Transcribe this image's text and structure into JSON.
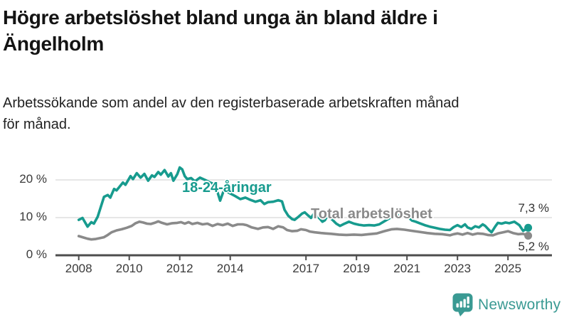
{
  "header": {
    "title_line1": "Högre arbetslöshet bland unga än bland äldre i",
    "title_line2": "Ängelholm",
    "subtitle_line1": "Arbetssökande som andel av den registerbaserade arbetskraften månad",
    "subtitle_line2": "för månad."
  },
  "footer": {
    "brand": "Newsworthy",
    "logo_icon": "bar-chart-speech-bubble-icon",
    "brand_color": "#3a9a93"
  },
  "chart_data": {
    "type": "line",
    "title": "Högre arbetslöshet bland unga än bland äldre i Ängelholm",
    "subtitle": "Arbetssökande som andel av den registerbaserade arbetskraften månad för månad.",
    "unit": "percent of registered labour force",
    "grid": "horizontal-only",
    "legend_position": "inline-labels",
    "x_axis": {
      "range": [
        2007.9,
        2026.8
      ],
      "ticks": [
        {
          "value": 2008,
          "label": "2008"
        },
        {
          "value": 2010,
          "label": "2010"
        },
        {
          "value": 2012,
          "label": "2012"
        },
        {
          "value": 2014,
          "label": "2014"
        },
        {
          "value": 2017,
          "label": "2017"
        },
        {
          "value": 2019,
          "label": "2019"
        },
        {
          "value": 2021,
          "label": "2021"
        },
        {
          "value": 2023,
          "label": "2023"
        },
        {
          "value": 2025,
          "label": "2025"
        }
      ]
    },
    "y_axis": {
      "range": [
        0,
        23.5
      ],
      "ticks": [
        {
          "value": 0,
          "label": "0 %"
        },
        {
          "value": 10,
          "label": "10 %"
        },
        {
          "value": 20,
          "label": "20 %"
        }
      ]
    },
    "colors": {
      "grid": "#dedede",
      "axis": "#4d4d4d",
      "tick_text": "#3a3a3a",
      "end_label_text": "#333333"
    },
    "series": [
      {
        "name": "Total arbetslöshet",
        "color": "#8a8a8a",
        "end_label": "5,2 %",
        "end_value": 5.2,
        "points": [
          [
            2008.0,
            5.1
          ],
          [
            2008.2,
            4.7
          ],
          [
            2008.35,
            4.4
          ],
          [
            2008.5,
            4.2
          ],
          [
            2008.65,
            4.3
          ],
          [
            2008.8,
            4.5
          ],
          [
            2009.0,
            4.8
          ],
          [
            2009.15,
            5.4
          ],
          [
            2009.3,
            6.1
          ],
          [
            2009.5,
            6.6
          ],
          [
            2009.7,
            6.9
          ],
          [
            2009.9,
            7.3
          ],
          [
            2010.1,
            7.8
          ],
          [
            2010.25,
            8.5
          ],
          [
            2010.4,
            8.9
          ],
          [
            2010.55,
            8.7
          ],
          [
            2010.7,
            8.4
          ],
          [
            2010.85,
            8.3
          ],
          [
            2011.0,
            8.6
          ],
          [
            2011.15,
            9.0
          ],
          [
            2011.3,
            8.6
          ],
          [
            2011.5,
            8.2
          ],
          [
            2011.7,
            8.5
          ],
          [
            2011.9,
            8.6
          ],
          [
            2012.05,
            8.8
          ],
          [
            2012.2,
            8.4
          ],
          [
            2012.35,
            8.8
          ],
          [
            2012.5,
            8.3
          ],
          [
            2012.7,
            8.6
          ],
          [
            2012.9,
            8.2
          ],
          [
            2013.1,
            8.4
          ],
          [
            2013.3,
            7.8
          ],
          [
            2013.5,
            8.3
          ],
          [
            2013.7,
            8.0
          ],
          [
            2013.9,
            8.4
          ],
          [
            2014.1,
            7.8
          ],
          [
            2014.3,
            8.2
          ],
          [
            2014.5,
            8.2
          ],
          [
            2014.65,
            8.0
          ],
          [
            2014.85,
            7.4
          ],
          [
            2015.1,
            7.0
          ],
          [
            2015.3,
            7.4
          ],
          [
            2015.5,
            7.5
          ],
          [
            2015.7,
            7.0
          ],
          [
            2015.9,
            7.7
          ],
          [
            2016.1,
            7.4
          ],
          [
            2016.25,
            6.7
          ],
          [
            2016.45,
            6.4
          ],
          [
            2016.65,
            6.5
          ],
          [
            2016.8,
            6.9
          ],
          [
            2017.0,
            6.7
          ],
          [
            2017.15,
            6.3
          ],
          [
            2017.35,
            6.1
          ],
          [
            2017.6,
            5.9
          ],
          [
            2017.8,
            5.8
          ],
          [
            2018.0,
            5.7
          ],
          [
            2018.3,
            5.5
          ],
          [
            2018.6,
            5.4
          ],
          [
            2018.9,
            5.5
          ],
          [
            2019.2,
            5.4
          ],
          [
            2019.5,
            5.6
          ],
          [
            2019.8,
            5.8
          ],
          [
            2020.1,
            6.4
          ],
          [
            2020.4,
            6.9
          ],
          [
            2020.6,
            7.0
          ],
          [
            2020.9,
            6.8
          ],
          [
            2021.2,
            6.5
          ],
          [
            2021.5,
            6.2
          ],
          [
            2021.8,
            5.9
          ],
          [
            2022.1,
            5.7
          ],
          [
            2022.4,
            5.6
          ],
          [
            2022.7,
            5.3
          ],
          [
            2022.85,
            5.6
          ],
          [
            2023.0,
            5.8
          ],
          [
            2023.2,
            5.5
          ],
          [
            2023.4,
            5.9
          ],
          [
            2023.6,
            5.5
          ],
          [
            2023.8,
            5.8
          ],
          [
            2024.0,
            5.7
          ],
          [
            2024.2,
            5.4
          ],
          [
            2024.4,
            5.3
          ],
          [
            2024.6,
            5.8
          ],
          [
            2024.8,
            6.1
          ],
          [
            2025.0,
            6.4
          ],
          [
            2025.2,
            5.9
          ],
          [
            2025.4,
            5.6
          ],
          [
            2025.6,
            5.7
          ],
          [
            2025.8,
            5.2
          ]
        ]
      },
      {
        "name": "18-24-åringar",
        "color": "#179b8e",
        "end_label": "7,3 %",
        "end_value": 7.3,
        "points": [
          [
            2008.0,
            9.4
          ],
          [
            2008.15,
            9.9
          ],
          [
            2008.35,
            7.6
          ],
          [
            2008.5,
            8.8
          ],
          [
            2008.6,
            8.4
          ],
          [
            2008.75,
            10.2
          ],
          [
            2009.0,
            15.5
          ],
          [
            2009.15,
            16.0
          ],
          [
            2009.25,
            15.3
          ],
          [
            2009.4,
            17.6
          ],
          [
            2009.5,
            17.2
          ],
          [
            2009.75,
            19.3
          ],
          [
            2009.85,
            18.7
          ],
          [
            2010.05,
            21.0
          ],
          [
            2010.15,
            20.2
          ],
          [
            2010.3,
            21.8
          ],
          [
            2010.45,
            20.6
          ],
          [
            2010.6,
            21.6
          ],
          [
            2010.75,
            19.8
          ],
          [
            2010.9,
            21.2
          ],
          [
            2011.0,
            20.8
          ],
          [
            2011.15,
            22.1
          ],
          [
            2011.25,
            21.4
          ],
          [
            2011.4,
            22.6
          ],
          [
            2011.55,
            20.9
          ],
          [
            2011.65,
            21.8
          ],
          [
            2011.75,
            19.8
          ],
          [
            2011.9,
            21.5
          ],
          [
            2012.0,
            23.3
          ],
          [
            2012.1,
            22.8
          ],
          [
            2012.2,
            21.0
          ],
          [
            2012.3,
            20.2
          ],
          [
            2012.45,
            20.5
          ],
          [
            2012.6,
            19.6
          ],
          [
            2012.8,
            20.6
          ],
          [
            2013.0,
            20.0
          ],
          [
            2013.2,
            19.3
          ],
          [
            2013.4,
            18.8
          ],
          [
            2013.6,
            14.5
          ],
          [
            2013.75,
            17.3
          ],
          [
            2014.0,
            16.4
          ],
          [
            2014.2,
            15.7
          ],
          [
            2014.4,
            14.9
          ],
          [
            2014.6,
            15.3
          ],
          [
            2014.8,
            14.7
          ],
          [
            2015.0,
            14.2
          ],
          [
            2015.2,
            14.6
          ],
          [
            2015.35,
            13.6
          ],
          [
            2015.5,
            14.1
          ],
          [
            2015.7,
            14.2
          ],
          [
            2015.9,
            14.6
          ],
          [
            2016.05,
            14.3
          ],
          [
            2016.15,
            12.1
          ],
          [
            2016.3,
            10.5
          ],
          [
            2016.45,
            9.6
          ],
          [
            2016.55,
            9.4
          ],
          [
            2016.7,
            10.2
          ],
          [
            2016.85,
            11.1
          ],
          [
            2016.95,
            11.4
          ],
          [
            2017.1,
            10.5
          ],
          [
            2017.2,
            9.9
          ],
          [
            2017.3,
            10.9
          ],
          [
            2017.4,
            10.7
          ],
          [
            2017.55,
            9.7
          ],
          [
            2017.65,
            8.9
          ],
          [
            2017.75,
            9.3
          ],
          [
            2017.85,
            10.5
          ],
          [
            2018.05,
            9.4
          ],
          [
            2018.2,
            8.4
          ],
          [
            2018.35,
            7.8
          ],
          [
            2018.5,
            8.3
          ],
          [
            2018.7,
            8.9
          ],
          [
            2018.9,
            8.4
          ],
          [
            2019.1,
            8.1
          ],
          [
            2019.3,
            7.9
          ],
          [
            2019.5,
            8.0
          ],
          [
            2019.7,
            7.9
          ],
          [
            2019.9,
            8.2
          ],
          [
            2020.1,
            9.0
          ],
          [
            2020.3,
            9.8
          ],
          [
            2020.45,
            10.6
          ],
          [
            2020.6,
            10.8
          ],
          [
            2020.75,
            10.3
          ],
          [
            2020.9,
            10.6
          ],
          [
            2021.05,
            10.1
          ],
          [
            2021.2,
            9.2
          ],
          [
            2021.35,
            8.9
          ],
          [
            2021.5,
            8.5
          ],
          [
            2021.7,
            8.0
          ],
          [
            2021.9,
            7.6
          ],
          [
            2022.1,
            7.3
          ],
          [
            2022.3,
            7.0
          ],
          [
            2022.5,
            6.8
          ],
          [
            2022.7,
            6.7
          ],
          [
            2022.85,
            7.5
          ],
          [
            2023.0,
            8.0
          ],
          [
            2023.15,
            7.5
          ],
          [
            2023.3,
            8.2
          ],
          [
            2023.4,
            7.4
          ],
          [
            2023.55,
            7.0
          ],
          [
            2023.7,
            7.7
          ],
          [
            2023.85,
            7.4
          ],
          [
            2024.0,
            8.2
          ],
          [
            2024.1,
            7.8
          ],
          [
            2024.25,
            6.7
          ],
          [
            2024.35,
            6.1
          ],
          [
            2024.5,
            7.7
          ],
          [
            2024.6,
            8.6
          ],
          [
            2024.75,
            8.4
          ],
          [
            2024.9,
            8.7
          ],
          [
            2025.05,
            8.5
          ],
          [
            2025.25,
            8.9
          ],
          [
            2025.45,
            8.0
          ],
          [
            2025.6,
            6.5
          ],
          [
            2025.8,
            7.3
          ]
        ]
      }
    ]
  }
}
